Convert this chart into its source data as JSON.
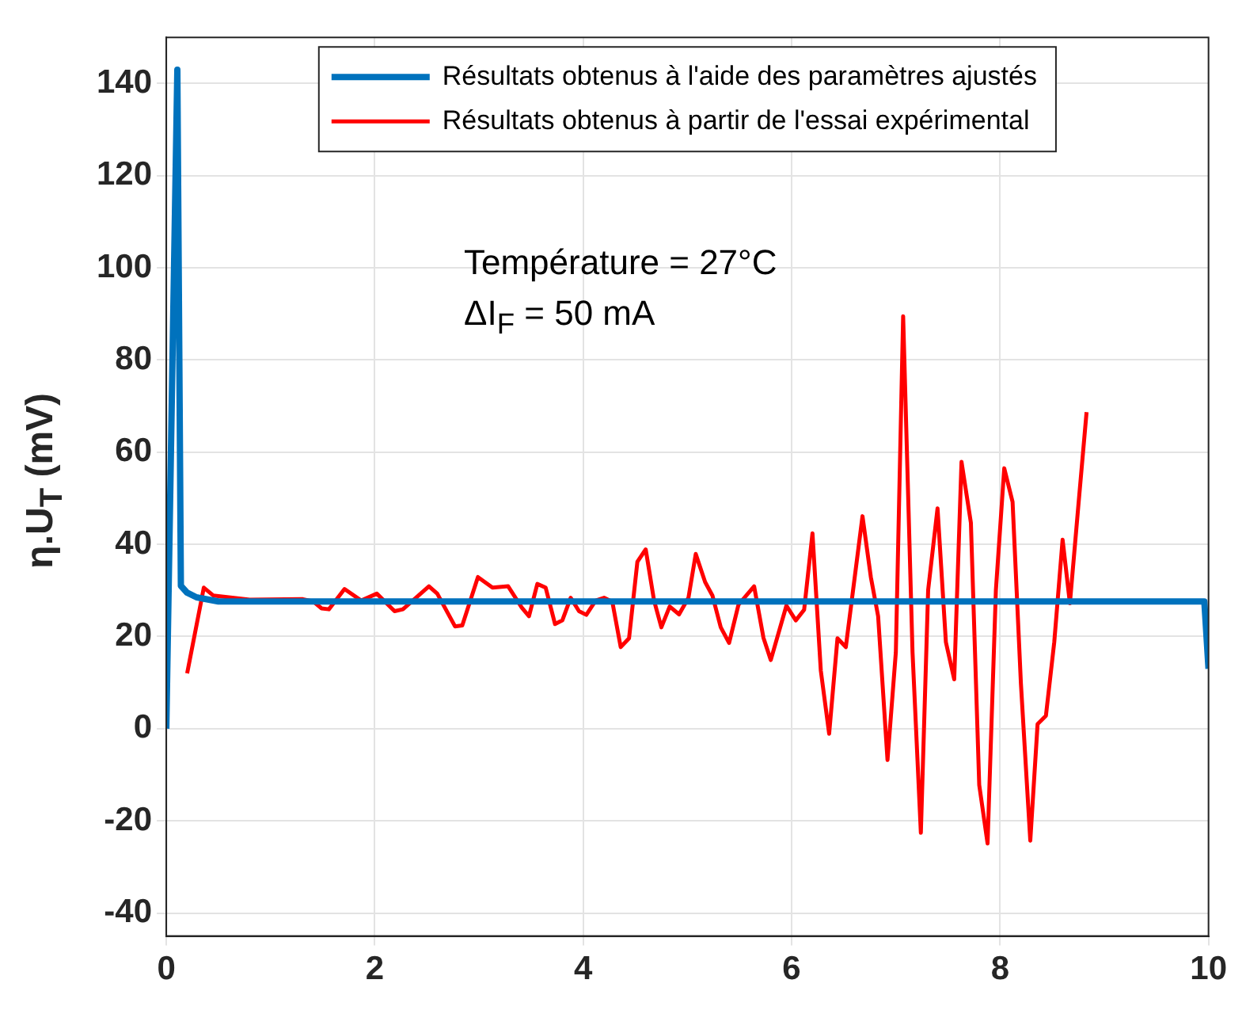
{
  "chart_data": {
    "type": "line",
    "ylabel": "η.U$_{T}$ (mV)",
    "annotations": [
      "Température = 27°C",
      "ΔI$_{F}$ = 50 mA"
    ],
    "xlim": [
      0,
      10
    ],
    "xticks": [
      0,
      2,
      4,
      6,
      8,
      10
    ],
    "ylim": [
      -45,
      150
    ],
    "yticks": [
      -40,
      -20,
      0,
      20,
      40,
      60,
      80,
      100,
      120,
      140
    ],
    "grid": true,
    "legend": "top",
    "marker": "none",
    "line_style": "solid",
    "series": [
      {
        "name": "Résultats obtenus à l'aide des paramètres ajustés",
        "color": "#0072bd",
        "x": [
          0,
          0.106,
          0.14,
          0.2,
          0.29,
          0.5,
          9.96,
          10
        ],
        "values": [
          0,
          143,
          31,
          29.5,
          28.5,
          27.6,
          27.6,
          13
        ]
      },
      {
        "name": "Résultats obtenus à partir de l'essai expérimental",
        "color": "#ff0000",
        "x": [
          0.2,
          0.36,
          0.45,
          0.8,
          1.31,
          1.41,
          1.49,
          1.56,
          1.71,
          1.87,
          2.02,
          2.19,
          2.27,
          2.52,
          2.6,
          2.77,
          2.84,
          2.99,
          3.13,
          3.28,
          3.41,
          3.48,
          3.56,
          3.64,
          3.73,
          3.8,
          3.88,
          3.96,
          4.03,
          4.12,
          4.2,
          4.28,
          4.36,
          4.44,
          4.52,
          4.6,
          4.68,
          4.75,
          4.83,
          4.92,
          5.01,
          5.08,
          5.17,
          5.24,
          5.32,
          5.4,
          5.49,
          5.64,
          5.73,
          5.8,
          5.95,
          6.04,
          6.12,
          6.2,
          6.28,
          6.36,
          6.44,
          6.52,
          6.68,
          6.76,
          6.83,
          6.92,
          7.0,
          7.07,
          7.16,
          7.24,
          7.31,
          7.4,
          7.48,
          7.56,
          7.63,
          7.72,
          7.8,
          7.88,
          7.96,
          8.04,
          8.12,
          8.2,
          8.29,
          8.36,
          8.44,
          8.52,
          8.6,
          8.67,
          8.75,
          8.83
        ],
        "values": [
          12,
          30.6,
          28.9,
          28,
          28.1,
          27.6,
          26.1,
          25.9,
          30.3,
          27.8,
          29.3,
          25.5,
          25.9,
          30.9,
          29.3,
          22.2,
          22.4,
          32.9,
          30.6,
          30.9,
          26.3,
          24.4,
          31.4,
          30.6,
          22.7,
          23.5,
          28.4,
          25.5,
          24.7,
          27.8,
          28.4,
          27.5,
          17.7,
          19.6,
          36.2,
          38.9,
          27.8,
          22,
          26.5,
          24.8,
          28.4,
          37.9,
          31.8,
          28.9,
          22,
          18.6,
          26.9,
          30.9,
          19.7,
          14.9,
          26.7,
          23.5,
          25.8,
          42.4,
          12.6,
          -1.1,
          19.6,
          17.7,
          46.1,
          32.9,
          24.4,
          -6.8,
          16.6,
          89.5,
          16.6,
          -22.6,
          30.1,
          47.8,
          18.8,
          10.7,
          57.9,
          44.7,
          -12.2,
          -24.9,
          30.1,
          56.5,
          49.2,
          9.8,
          -24.3,
          1,
          2.8,
          18.8,
          41,
          27.2,
          48.1,
          68.7
        ]
      }
    ]
  }
}
